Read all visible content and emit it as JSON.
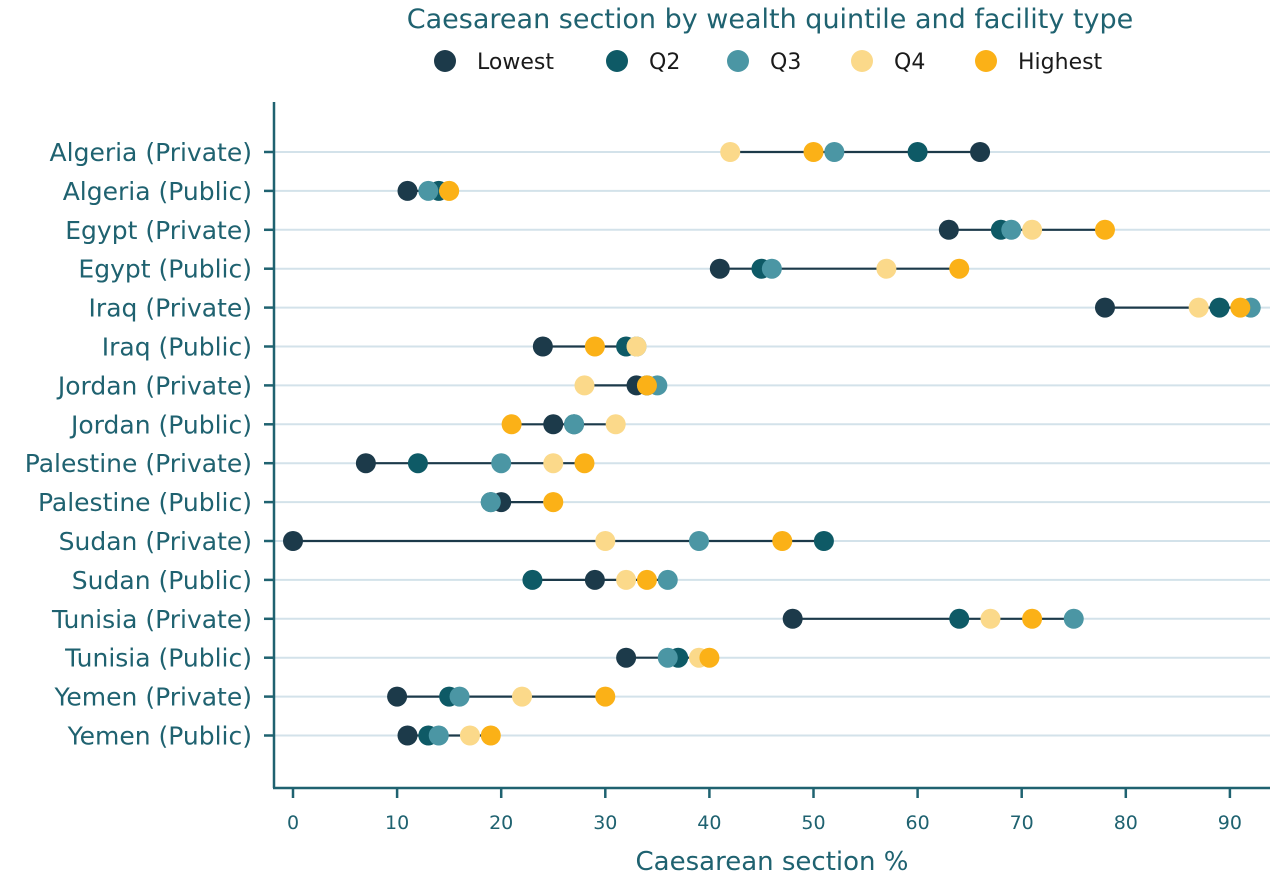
{
  "chart_data": {
    "type": "scatter",
    "title": "Caesarean section by wealth quintile and facility type",
    "xlabel": "Caesarean section %",
    "xlim": [
      0,
      92
    ],
    "xticks": [
      0,
      10,
      20,
      30,
      40,
      50,
      60,
      70,
      80,
      90
    ],
    "grid": true,
    "legend_position": "top",
    "categories": [
      "Algeria (Private)",
      "Algeria (Public)",
      "Egypt (Private)",
      "Egypt (Public)",
      "Iraq (Private)",
      "Iraq (Public)",
      "Jordan (Private)",
      "Jordan (Public)",
      "Palestine (Private)",
      "Palestine (Public)",
      "Sudan (Private)",
      "Sudan (Public)",
      "Tunisia (Private)",
      "Tunisia (Public)",
      "Yemen (Private)",
      "Yemen (Public)"
    ],
    "series": [
      {
        "name": "Lowest",
        "color": "#1c3a4a",
        "values": [
          66,
          11,
          63,
          41,
          78,
          24,
          33,
          25,
          7,
          20,
          0,
          29,
          48,
          32,
          10,
          11
        ]
      },
      {
        "name": "Q2",
        "color": "#0e5a66",
        "values": [
          60,
          14,
          68,
          45,
          89,
          32,
          34,
          27,
          12,
          19,
          51,
          23,
          64,
          37,
          15,
          13
        ]
      },
      {
        "name": "Q3",
        "color": "#4b96a4",
        "values": [
          52,
          13,
          69,
          46,
          92,
          33,
          35,
          27,
          20,
          19,
          39,
          36,
          75,
          36,
          16,
          14
        ]
      },
      {
        "name": "Q4",
        "color": "#fbd98a",
        "values": [
          42,
          15,
          71,
          57,
          87,
          33,
          28,
          31,
          25,
          25,
          30,
          32,
          67,
          39,
          22,
          17
        ]
      },
      {
        "name": "Highest",
        "color": "#fbb117",
        "values": [
          50,
          15,
          78,
          64,
          91,
          29,
          34,
          21,
          28,
          25,
          47,
          34,
          71,
          40,
          30,
          19
        ]
      }
    ]
  }
}
